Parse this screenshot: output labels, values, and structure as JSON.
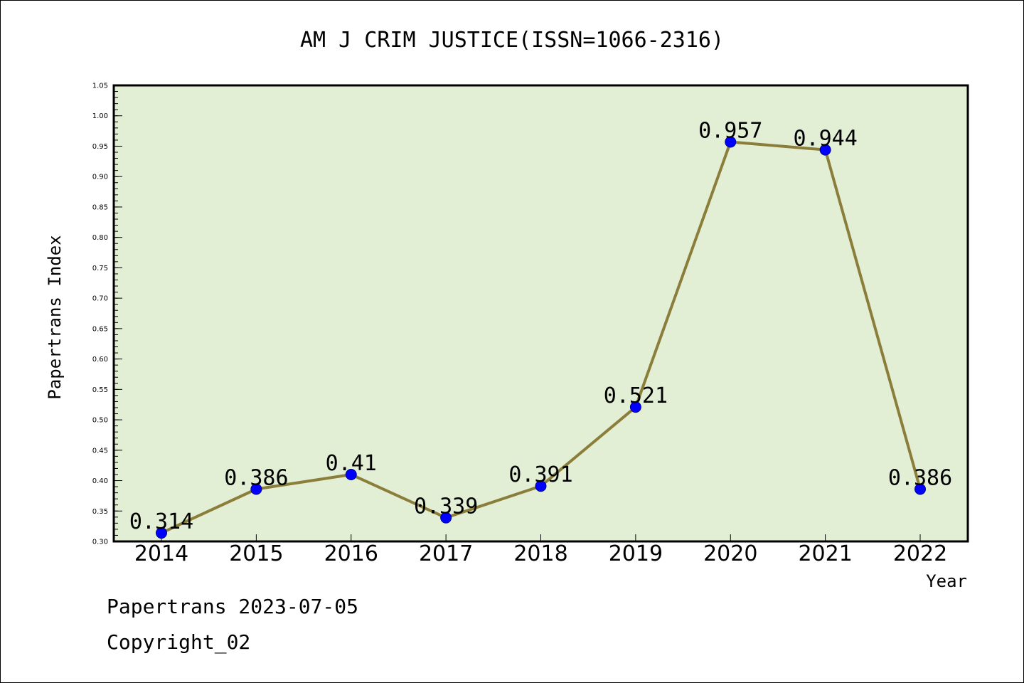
{
  "chart_data": {
    "type": "line",
    "title": "AM J CRIM JUSTICE(ISSN=1066-2316)",
    "xlabel": "Year",
    "ylabel": "Papertrans Index",
    "categories": [
      "2014",
      "2015",
      "2016",
      "2017",
      "2018",
      "2019",
      "2020",
      "2021",
      "2022"
    ],
    "values": [
      0.314,
      0.386,
      0.41,
      0.339,
      0.391,
      0.521,
      0.957,
      0.944,
      0.386
    ],
    "data_labels": [
      "0.314",
      "0.386",
      "0.41",
      "0.339",
      "0.391",
      "0.521",
      "0.957",
      "0.944",
      "0.386"
    ],
    "ylim": [
      0.3,
      1.05
    ],
    "yticks": [
      "0.30",
      "0.35",
      "0.40",
      "0.45",
      "0.50",
      "0.55",
      "0.60",
      "0.65",
      "0.70",
      "0.75",
      "0.80",
      "0.85",
      "0.90",
      "0.95",
      "1.00",
      "1.05"
    ],
    "grid": false,
    "colors": {
      "plot_background": "#e2efd5",
      "line": "#8b7d3a",
      "marker": "#0000ff"
    }
  },
  "footer": {
    "date_line": "Papertrans 2023-07-05",
    "copyright": "Copyright_02"
  }
}
